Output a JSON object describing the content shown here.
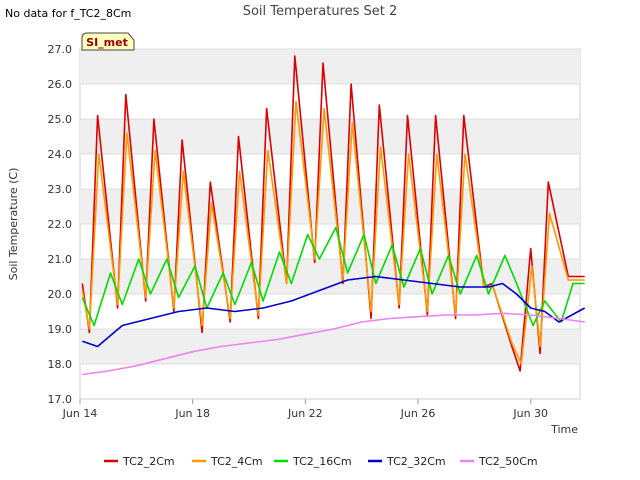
{
  "note": "No data for f_TC2_8Cm",
  "badge": "SI_met",
  "chart_data": {
    "type": "line",
    "title": "Soil Temperatures Set 2",
    "xlabel": "Time",
    "ylabel": "Soil Temperature (C)",
    "xlim": [
      "2023-06-14",
      "2023-07-01T18:00"
    ],
    "ylim": [
      17.0,
      27.0
    ],
    "yticks": [
      17.0,
      18.0,
      19.0,
      20.0,
      21.0,
      22.0,
      23.0,
      24.0,
      25.0,
      26.0,
      27.0
    ],
    "xticks": [
      {
        "date": "2023-06-14",
        "label": "Jun 14"
      },
      {
        "date": "2023-06-18",
        "label": "Jun 18"
      },
      {
        "date": "2023-06-22",
        "label": "Jun 22"
      },
      {
        "date": "2023-06-26",
        "label": "Jun 26"
      },
      {
        "date": "2023-06-30",
        "label": "Jun 30"
      }
    ],
    "legend_position": "bottom",
    "banding": true,
    "series": [
      {
        "name": "TC2_2Cm",
        "color": "#dd0000",
        "x": [
          "2023-06-14T02:00",
          "2023-06-14T08:00",
          "2023-06-14T15:00",
          "2023-06-15T08:00",
          "2023-06-15T15:00",
          "2023-06-16T08:00",
          "2023-06-16T15:00",
          "2023-06-17T08:00",
          "2023-06-17T15:00",
          "2023-06-18T08:00",
          "2023-06-18T15:00",
          "2023-06-19T08:00",
          "2023-06-19T15:00",
          "2023-06-20T08:00",
          "2023-06-20T15:00",
          "2023-06-21T08:00",
          "2023-06-21T15:00",
          "2023-06-22T08:00",
          "2023-06-22T15:00",
          "2023-06-23T08:00",
          "2023-06-23T15:00",
          "2023-06-24T08:00",
          "2023-06-24T15:00",
          "2023-06-25T08:00",
          "2023-06-25T15:00",
          "2023-06-26T08:00",
          "2023-06-26T15:00",
          "2023-06-27T08:00",
          "2023-06-27T15:00",
          "2023-06-28T08:00",
          "2023-06-28T15:00",
          "2023-06-29T08:00",
          "2023-06-29T15:00",
          "2023-06-30T00:00",
          "2023-06-30T08:00",
          "2023-06-30T15:00",
          "2023-07-01T08:00",
          "2023-07-01T15:00",
          "2023-07-01T22:00"
        ],
        "y": [
          20.3,
          18.9,
          25.1,
          19.6,
          25.7,
          19.8,
          25.0,
          19.5,
          24.4,
          18.9,
          23.2,
          19.2,
          24.5,
          19.3,
          25.3,
          20.3,
          26.8,
          20.9,
          26.6,
          20.3,
          26.0,
          19.3,
          25.4,
          19.6,
          25.1,
          19.4,
          25.1,
          19.3,
          25.1,
          20.2,
          20.3,
          18.5,
          17.8,
          21.3,
          18.3,
          23.2,
          20.5,
          20.5,
          20.5
        ]
      },
      {
        "name": "TC2_4Cm",
        "color": "#ff9900",
        "x": [
          "2023-06-14T02:00",
          "2023-06-14T08:00",
          "2023-06-14T16:00",
          "2023-06-15T08:00",
          "2023-06-15T16:00",
          "2023-06-16T08:00",
          "2023-06-16T16:00",
          "2023-06-17T08:00",
          "2023-06-17T16:00",
          "2023-06-18T08:00",
          "2023-06-18T16:00",
          "2023-06-19T08:00",
          "2023-06-19T16:00",
          "2023-06-20T08:00",
          "2023-06-20T16:00",
          "2023-06-21T08:00",
          "2023-06-21T16:00",
          "2023-06-22T08:00",
          "2023-06-22T16:00",
          "2023-06-23T08:00",
          "2023-06-23T16:00",
          "2023-06-24T08:00",
          "2023-06-24T16:00",
          "2023-06-25T08:00",
          "2023-06-25T16:00",
          "2023-06-26T08:00",
          "2023-06-26T16:00",
          "2023-06-27T08:00",
          "2023-06-27T16:00",
          "2023-06-28T08:00",
          "2023-06-28T16:00",
          "2023-06-29T08:00",
          "2023-06-29T16:00",
          "2023-06-30T01:00",
          "2023-06-30T08:00",
          "2023-06-30T16:00",
          "2023-07-01T08:00",
          "2023-07-01T15:00",
          "2023-07-01T22:00"
        ],
        "y": [
          20.1,
          19.0,
          24.0,
          19.7,
          24.6,
          19.9,
          24.1,
          19.6,
          23.5,
          19.1,
          22.6,
          19.3,
          23.5,
          19.4,
          24.1,
          20.3,
          25.5,
          21.0,
          25.3,
          20.4,
          24.9,
          19.5,
          24.2,
          19.7,
          24.0,
          19.5,
          24.0,
          19.4,
          24.0,
          20.2,
          20.2,
          18.6,
          18.0,
          20.8,
          18.5,
          22.3,
          20.4,
          20.4,
          20.4
        ]
      },
      {
        "name": "TC2_16Cm",
        "color": "#00dd00",
        "x": [
          "2023-06-14T02:00",
          "2023-06-14T12:00",
          "2023-06-15T02:00",
          "2023-06-15T12:00",
          "2023-06-16T02:00",
          "2023-06-16T12:00",
          "2023-06-17T02:00",
          "2023-06-17T12:00",
          "2023-06-18T02:00",
          "2023-06-18T12:00",
          "2023-06-19T02:00",
          "2023-06-19T12:00",
          "2023-06-20T02:00",
          "2023-06-20T12:00",
          "2023-06-21T02:00",
          "2023-06-21T12:00",
          "2023-06-22T02:00",
          "2023-06-22T12:00",
          "2023-06-23T02:00",
          "2023-06-23T12:00",
          "2023-06-24T02:00",
          "2023-06-24T12:00",
          "2023-06-25T02:00",
          "2023-06-25T12:00",
          "2023-06-26T02:00",
          "2023-06-26T12:00",
          "2023-06-27T02:00",
          "2023-06-27T12:00",
          "2023-06-28T02:00",
          "2023-06-28T12:00",
          "2023-06-29T02:00",
          "2023-06-29T12:00",
          "2023-06-30T02:00",
          "2023-06-30T12:00",
          "2023-07-01T02:00",
          "2023-07-01T12:00",
          "2023-07-01T22:00"
        ],
        "y": [
          19.9,
          19.1,
          20.6,
          19.7,
          21.0,
          20.0,
          21.0,
          19.9,
          20.8,
          19.6,
          20.6,
          19.7,
          20.9,
          19.8,
          21.2,
          20.3,
          21.7,
          21.0,
          21.9,
          20.6,
          21.7,
          20.3,
          21.4,
          20.2,
          21.3,
          20.0,
          21.1,
          20.0,
          21.1,
          20.0,
          21.1,
          20.3,
          19.1,
          19.8,
          19.2,
          20.3,
          20.3
        ]
      },
      {
        "name": "TC2_32Cm",
        "color": "#0000cc",
        "x": [
          "2023-06-14T02:00",
          "2023-06-14T15:00",
          "2023-06-15T12:00",
          "2023-06-16T12:00",
          "2023-06-17T12:00",
          "2023-06-18T12:00",
          "2023-06-19T12:00",
          "2023-06-20T12:00",
          "2023-06-21T12:00",
          "2023-06-22T12:00",
          "2023-06-23T12:00",
          "2023-06-24T12:00",
          "2023-06-25T12:00",
          "2023-06-26T12:00",
          "2023-06-27T12:00",
          "2023-06-28T12:00",
          "2023-06-29T00:00",
          "2023-06-29T12:00",
          "2023-06-30T00:00",
          "2023-06-30T12:00",
          "2023-07-01T00:00",
          "2023-07-01T22:00"
        ],
        "y": [
          18.65,
          18.5,
          19.1,
          19.3,
          19.5,
          19.6,
          19.5,
          19.6,
          19.8,
          20.1,
          20.4,
          20.5,
          20.4,
          20.3,
          20.2,
          20.2,
          20.3,
          20.0,
          19.6,
          19.5,
          19.2,
          19.6
        ]
      },
      {
        "name": "TC2_50Cm",
        "color": "#ee82ee",
        "x": [
          "2023-06-14T02:00",
          "2023-06-15T00:00",
          "2023-06-16T00:00",
          "2023-06-17T00:00",
          "2023-06-18T00:00",
          "2023-06-19T00:00",
          "2023-06-20T00:00",
          "2023-06-21T00:00",
          "2023-06-22T00:00",
          "2023-06-23T00:00",
          "2023-06-24T00:00",
          "2023-06-25T00:00",
          "2023-06-26T00:00",
          "2023-06-27T00:00",
          "2023-06-28T00:00",
          "2023-06-29T00:00",
          "2023-06-30T00:00",
          "2023-07-01T00:00",
          "2023-07-01T22:00"
        ],
        "y": [
          17.7,
          17.8,
          17.95,
          18.15,
          18.35,
          18.5,
          18.6,
          18.7,
          18.85,
          19.0,
          19.2,
          19.3,
          19.35,
          19.4,
          19.4,
          19.45,
          19.4,
          19.3,
          19.2
        ]
      }
    ]
  }
}
